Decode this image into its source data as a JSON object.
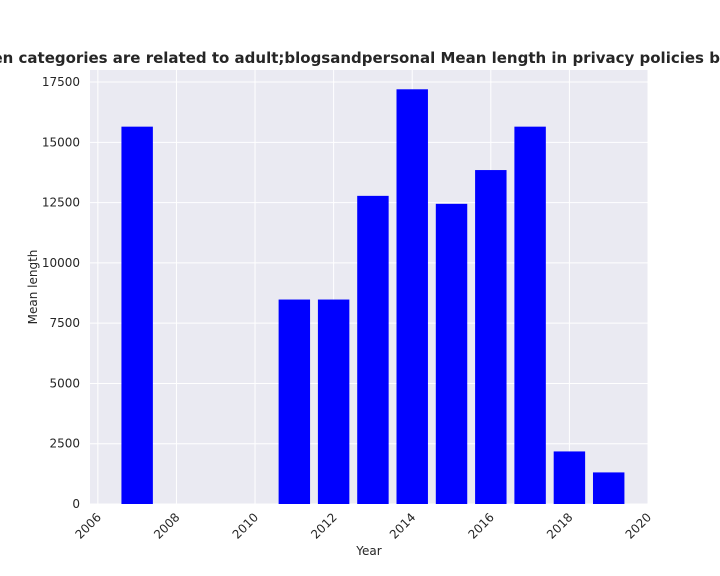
{
  "chart_data": {
    "type": "bar",
    "title": "when categories are related to adult;blogsandpersonal Mean length in privacy policies by Year",
    "xlabel": "Year",
    "ylabel": "Mean length",
    "x": [
      2007,
      2011,
      2012,
      2013,
      2014,
      2015,
      2016,
      2017,
      2018,
      2019
    ],
    "values": [
      15650,
      8480,
      8480,
      12780,
      17200,
      12450,
      13850,
      15650,
      2180,
      1310
    ],
    "xlim": [
      2005.8,
      2020.0
    ],
    "ylim": [
      0,
      18000
    ],
    "xticks": [
      "2006",
      "2008",
      "2010",
      "2012",
      "2014",
      "2016",
      "2018",
      "2020"
    ],
    "yticks": [
      "0",
      "2500",
      "5000",
      "7500",
      "10000",
      "12500",
      "15000",
      "17500"
    ],
    "grid": true,
    "bar_color": "#0000ff",
    "background_color": "#eaeaf2"
  }
}
